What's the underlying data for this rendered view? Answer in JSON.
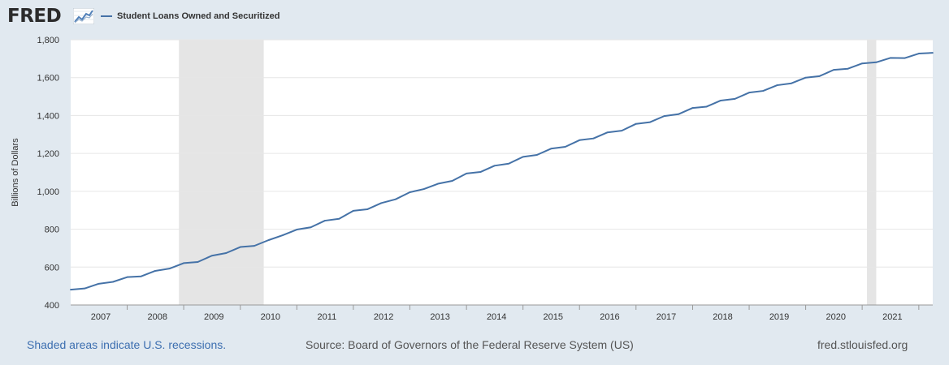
{
  "header": {
    "logo_text": "FRED",
    "logo_icon": "trend-line-icon"
  },
  "chart_data": {
    "type": "line",
    "title": "",
    "xlabel": "",
    "ylabel": "Billions of Dollars",
    "ylim": [
      400,
      1800
    ],
    "xlim": [
      "2006-01-01",
      "2021-04-01"
    ],
    "y_ticks": [
      400,
      600,
      800,
      1000,
      1200,
      1400,
      1600,
      1800
    ],
    "y_tick_labels": [
      "400",
      "600",
      "800",
      "1,000",
      "1,200",
      "1,400",
      "1,600",
      "1,800"
    ],
    "x_tick_labels": [
      "2007",
      "2008",
      "2009",
      "2010",
      "2011",
      "2012",
      "2013",
      "2014",
      "2015",
      "2016",
      "2017",
      "2018",
      "2019",
      "2020",
      "2021"
    ],
    "grid": "horizontal",
    "legend_position": "top-left",
    "recession_shading": [
      {
        "start": "2007-12-01",
        "end": "2009-06-01"
      },
      {
        "start": "2020-02-01",
        "end": "2020-04-01"
      }
    ],
    "series": [
      {
        "name": "Student Loans Owned and Securitized",
        "color": "#4572a7",
        "x": [
          "2006-01-01",
          "2006-04-01",
          "2006-07-01",
          "2006-10-01",
          "2007-01-01",
          "2007-04-01",
          "2007-07-01",
          "2007-10-01",
          "2008-01-01",
          "2008-04-01",
          "2008-07-01",
          "2008-10-01",
          "2009-01-01",
          "2009-04-01",
          "2009-07-01",
          "2009-10-01",
          "2010-01-01",
          "2010-04-01",
          "2010-07-01",
          "2010-10-01",
          "2011-01-01",
          "2011-04-01",
          "2011-07-01",
          "2011-10-01",
          "2012-01-01",
          "2012-04-01",
          "2012-07-01",
          "2012-10-01",
          "2013-01-01",
          "2013-04-01",
          "2013-07-01",
          "2013-10-01",
          "2014-01-01",
          "2014-04-01",
          "2014-07-01",
          "2014-10-01",
          "2015-01-01",
          "2015-04-01",
          "2015-07-01",
          "2015-10-01",
          "2016-01-01",
          "2016-04-01",
          "2016-07-01",
          "2016-10-01",
          "2017-01-01",
          "2017-04-01",
          "2017-07-01",
          "2017-10-01",
          "2018-01-01",
          "2018-04-01",
          "2018-07-01",
          "2018-10-01",
          "2019-01-01",
          "2019-04-01",
          "2019-07-01",
          "2019-10-01",
          "2020-01-01",
          "2020-04-01",
          "2020-07-01",
          "2020-10-01",
          "2021-01-01",
          "2021-04-01"
        ],
        "values": [
          481,
          487,
          512,
          522,
          547,
          551,
          580,
          592,
          621,
          627,
          660,
          674,
          706,
          712,
          742,
          768,
          798,
          810,
          845,
          855,
          897,
          905,
          938,
          958,
          995,
          1012,
          1040,
          1055,
          1094,
          1102,
          1135,
          1146,
          1182,
          1192,
          1225,
          1235,
          1270,
          1279,
          1311,
          1320,
          1356,
          1365,
          1397,
          1407,
          1440,
          1447,
          1479,
          1488,
          1521,
          1530,
          1560,
          1570,
          1600,
          1608,
          1641,
          1647,
          1675,
          1681,
          1704,
          1703,
          1727,
          1731
        ]
      }
    ]
  },
  "footer": {
    "recession_note": "Shaded areas indicate U.S. recessions.",
    "source": "Source: Board of Governors of the Federal Reserve System (US)",
    "site": "fred.stlouisfed.org"
  }
}
